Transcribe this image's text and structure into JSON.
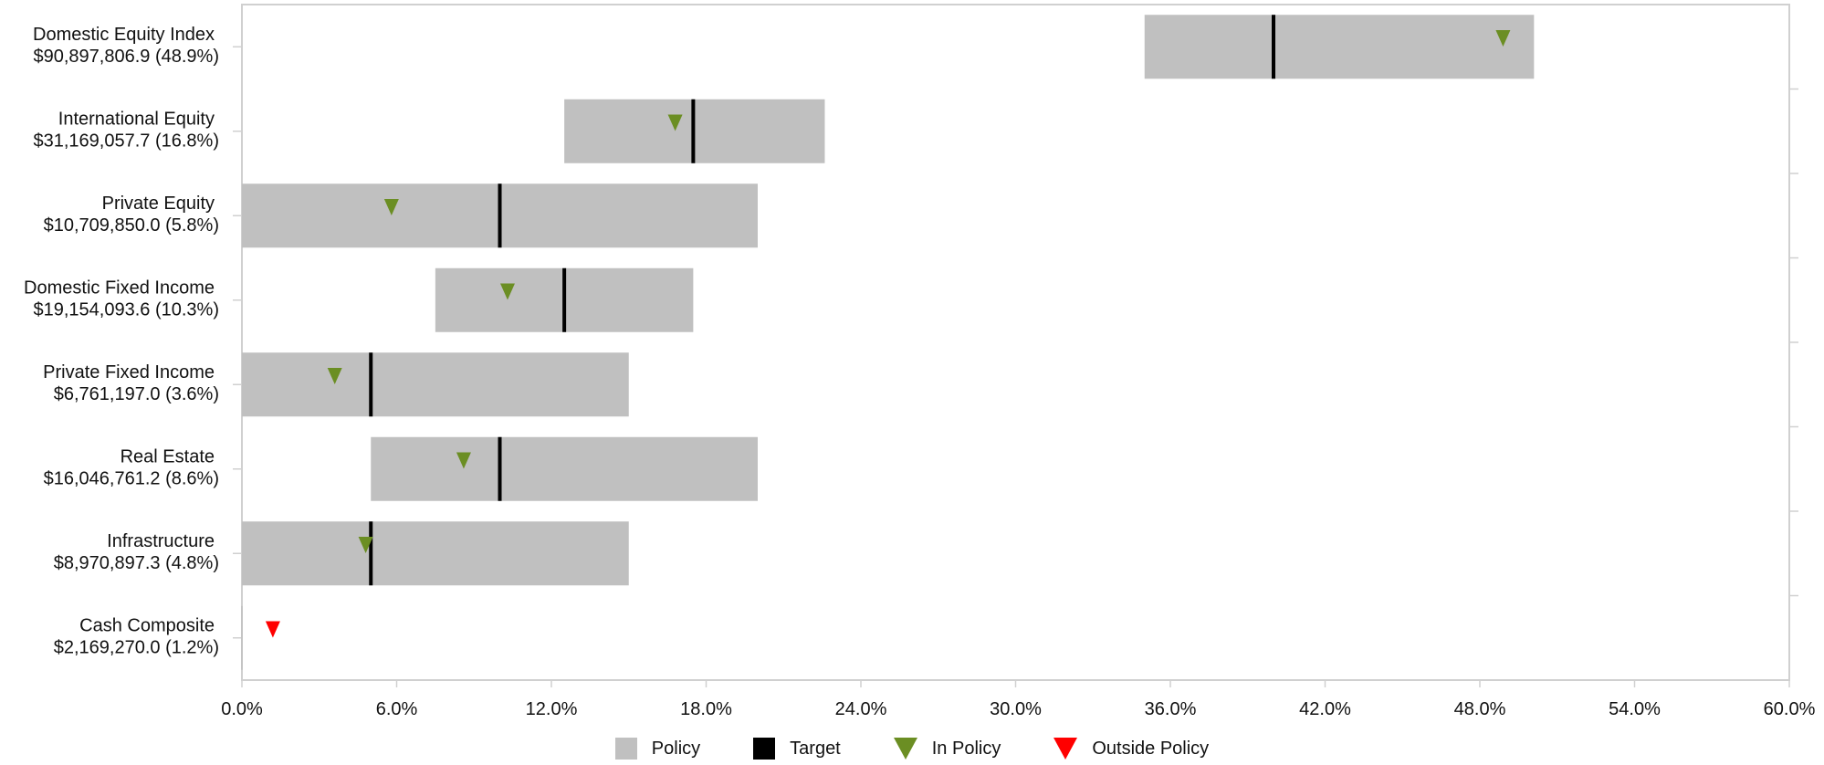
{
  "chart_data": {
    "type": "bar",
    "subtype": "asset-allocation-range",
    "categories": [
      {
        "name": "Domestic Equity Index",
        "value_label": "$90,897,806.9 (48.9%)",
        "policy_min": 35.0,
        "policy_max": 50.1,
        "target": 40.0,
        "actual": 48.9,
        "in_policy": true
      },
      {
        "name": "International Equity",
        "value_label": "$31,169,057.7 (16.8%)",
        "policy_min": 12.5,
        "policy_max": 22.6,
        "target": 17.5,
        "actual": 16.8,
        "in_policy": true
      },
      {
        "name": "Private Equity",
        "value_label": "$10,709,850.0 (5.8%)",
        "policy_min": 0.0,
        "policy_max": 20.0,
        "target": 10.0,
        "actual": 5.8,
        "in_policy": true
      },
      {
        "name": "Domestic Fixed Income",
        "value_label": "$19,154,093.6 (10.3%)",
        "policy_min": 7.5,
        "policy_max": 17.5,
        "target": 12.5,
        "actual": 10.3,
        "in_policy": true
      },
      {
        "name": "Private Fixed Income",
        "value_label": "$6,761,197.0 (3.6%)",
        "policy_min": 0.0,
        "policy_max": 15.0,
        "target": 5.0,
        "actual": 3.6,
        "in_policy": true
      },
      {
        "name": "Real Estate",
        "value_label": "$16,046,761.2 (8.6%)",
        "policy_min": 5.0,
        "policy_max": 20.0,
        "target": 10.0,
        "actual": 8.6,
        "in_policy": true
      },
      {
        "name": "Infrastructure",
        "value_label": "$8,970,897.3 (4.8%)",
        "policy_min": 0.0,
        "policy_max": 15.0,
        "target": 5.0,
        "actual": 4.8,
        "in_policy": true
      },
      {
        "name": "Cash Composite",
        "value_label": "$2,169,270.0 (1.2%)",
        "policy_min": 0.0,
        "policy_max": 0.0,
        "target": 0.0,
        "actual": 1.2,
        "in_policy": false
      }
    ],
    "x_ticks": [
      "0.0%",
      "6.0%",
      "12.0%",
      "18.0%",
      "24.0%",
      "30.0%",
      "36.0%",
      "42.0%",
      "48.0%",
      "54.0%",
      "60.0%"
    ],
    "xlim": [
      0,
      60
    ],
    "legend": [
      {
        "label": "Policy",
        "key": "policy"
      },
      {
        "label": "Target",
        "key": "target"
      },
      {
        "label": "In Policy",
        "key": "in_policy"
      },
      {
        "label": "Outside Policy",
        "key": "outside_policy"
      }
    ],
    "legend_position": "bottom",
    "colors": {
      "policy": "#c0c0c0",
      "target": "#000000",
      "in_policy": "#6b8e23",
      "outside_policy": "#ff0000",
      "axis": "#d0d0d0"
    }
  }
}
